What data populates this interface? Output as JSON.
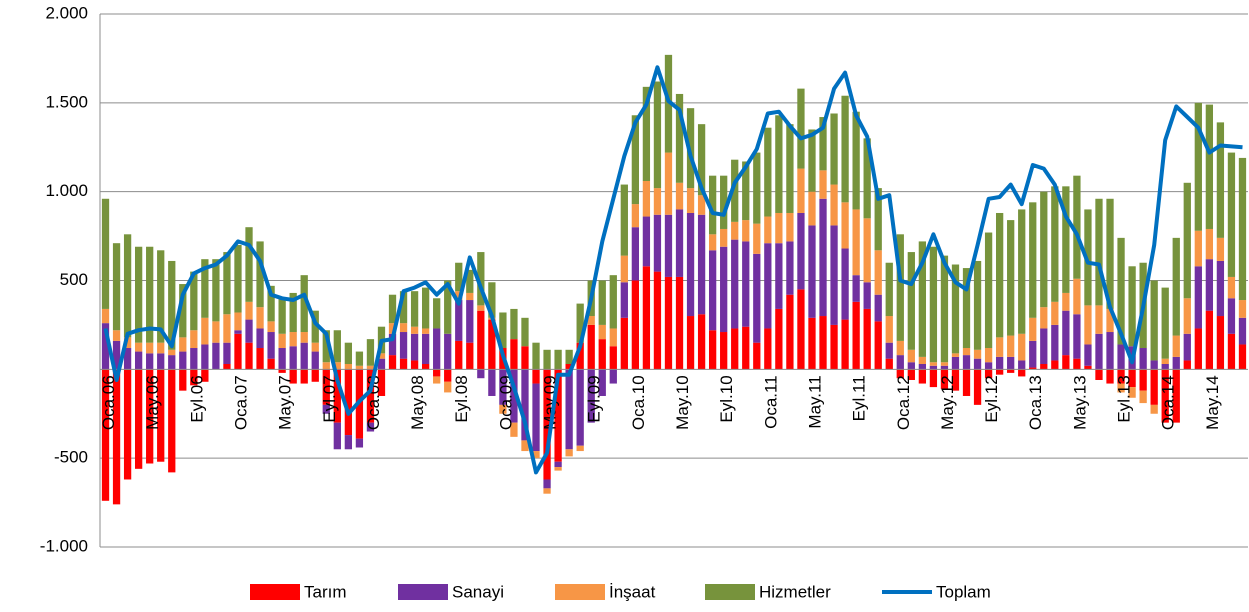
{
  "chart_data": {
    "type": "bar",
    "stacked": true,
    "categories": [
      "Oca.06",
      null,
      null,
      null,
      "May.06",
      null,
      null,
      null,
      "Eyl.06",
      null,
      null,
      null,
      "Oca.07",
      null,
      null,
      null,
      "May.07",
      null,
      null,
      null,
      "Eyl.07",
      null,
      null,
      null,
      "Oca.08",
      null,
      null,
      null,
      "May.08",
      null,
      null,
      null,
      "Eyl.08",
      null,
      null,
      null,
      "Oca.09",
      null,
      null,
      null,
      "May.09",
      null,
      null,
      null,
      "Eyl.09",
      null,
      null,
      null,
      "Oca.10",
      null,
      null,
      null,
      "May.10",
      null,
      null,
      null,
      "Eyl.10",
      null,
      null,
      null,
      "Oca.11",
      null,
      null,
      null,
      "May.11",
      null,
      null,
      null,
      "Eyl.11",
      null,
      null,
      null,
      "Oca.12",
      null,
      null,
      null,
      "May.12",
      null,
      null,
      null,
      "Eyl.12",
      null,
      null,
      null,
      "Oca.13",
      null,
      null,
      null,
      "May.13",
      null,
      null,
      null,
      "Eyl.13",
      null,
      null,
      null,
      "Oca.14",
      null,
      null,
      null,
      "May.14",
      null,
      null,
      null
    ],
    "series": [
      {
        "name": "Tarım",
        "color": "#ff0000",
        "values": [
          -740,
          -760,
          -620,
          -560,
          -530,
          -520,
          -580,
          -120,
          -90,
          -70,
          0,
          30,
          200,
          150,
          120,
          60,
          -20,
          -80,
          -80,
          -70,
          -200,
          -300,
          -370,
          -390,
          -300,
          -150,
          80,
          60,
          50,
          30,
          -40,
          -70,
          160,
          150,
          330,
          280,
          120,
          170,
          130,
          -80,
          -620,
          -520,
          30,
          150,
          250,
          170,
          130,
          290,
          500,
          580,
          550,
          520,
          520,
          300,
          310,
          220,
          210,
          230,
          240,
          150,
          230,
          340,
          420,
          450,
          290,
          300,
          250,
          280,
          380,
          340,
          270,
          60,
          -50,
          -60,
          -80,
          -100,
          -110,
          -120,
          -150,
          -200,
          -50,
          -30,
          -20,
          -40,
          10,
          30,
          50,
          80,
          60,
          20,
          -60,
          -80,
          -80,
          -100,
          -120,
          -200,
          -300,
          -300,
          50,
          230,
          330,
          300,
          200,
          140
        ]
      },
      {
        "name": "Sanayi",
        "color": "#7030a0",
        "values": [
          260,
          160,
          120,
          100,
          90,
          90,
          80,
          100,
          120,
          140,
          150,
          120,
          20,
          130,
          110,
          150,
          120,
          130,
          150,
          100,
          -50,
          -150,
          -80,
          -50,
          -50,
          60,
          120,
          150,
          150,
          170,
          230,
          200,
          230,
          240,
          -50,
          -150,
          -200,
          -300,
          -400,
          -380,
          -50,
          -30,
          -450,
          -430,
          -300,
          -150,
          -80,
          200,
          300,
          280,
          320,
          350,
          380,
          580,
          560,
          450,
          480,
          500,
          480,
          500,
          480,
          370,
          300,
          430,
          520,
          660,
          560,
          400,
          150,
          150,
          150,
          90,
          80,
          40,
          30,
          20,
          20,
          70,
          80,
          60,
          40,
          70,
          70,
          50,
          150,
          200,
          200,
          250,
          250,
          120,
          200,
          210,
          140,
          130,
          120,
          50,
          30,
          70,
          150,
          350,
          290,
          310,
          200,
          150
        ]
      },
      {
        "name": "İnşaat",
        "color": "#f79646",
        "values": [
          80,
          60,
          60,
          50,
          60,
          60,
          30,
          80,
          100,
          150,
          120,
          160,
          100,
          100,
          120,
          60,
          80,
          80,
          60,
          50,
          40,
          40,
          30,
          20,
          20,
          30,
          60,
          50,
          40,
          30,
          -40,
          -60,
          50,
          40,
          30,
          10,
          -50,
          -80,
          -60,
          -40,
          -30,
          -20,
          -40,
          -30,
          50,
          80,
          100,
          150,
          130,
          200,
          150,
          350,
          150,
          140,
          110,
          90,
          100,
          100,
          120,
          170,
          150,
          170,
          160,
          250,
          190,
          160,
          230,
          260,
          370,
          360,
          250,
          150,
          80,
          70,
          40,
          20,
          20,
          20,
          40,
          50,
          80,
          110,
          120,
          150,
          130,
          120,
          130,
          100,
          200,
          220,
          160,
          130,
          -50,
          -60,
          -70,
          -50,
          30,
          120,
          200,
          200,
          170,
          130,
          120,
          100
        ]
      },
      {
        "name": "Hizmetler",
        "color": "#77933c",
        "values": [
          620,
          490,
          580,
          540,
          540,
          520,
          500,
          300,
          330,
          330,
          350,
          350,
          380,
          420,
          370,
          200,
          200,
          220,
          320,
          180,
          180,
          180,
          120,
          80,
          150,
          150,
          160,
          180,
          200,
          230,
          170,
          300,
          160,
          130,
          300,
          200,
          200,
          170,
          160,
          150,
          110,
          110,
          80,
          220,
          200,
          250,
          300,
          400,
          500,
          530,
          600,
          550,
          500,
          450,
          400,
          330,
          300,
          350,
          330,
          400,
          500,
          550,
          500,
          450,
          350,
          300,
          400,
          600,
          550,
          450,
          350,
          300,
          600,
          550,
          650,
          650,
          600,
          500,
          450,
          500,
          650,
          700,
          650,
          700,
          650,
          650,
          650,
          600,
          580,
          540,
          600,
          620,
          600,
          450,
          480,
          450,
          400,
          550,
          650,
          720,
          700,
          650,
          700,
          800
        ]
      },
      {
        "name": "Toplam",
        "color": "#0070c0",
        "type": "line",
        "values": [
          230,
          -60,
          200,
          220,
          230,
          225,
          130,
          420,
          540,
          570,
          590,
          640,
          720,
          700,
          610,
          420,
          400,
          390,
          420,
          260,
          200,
          -60,
          -250,
          -180,
          -120,
          160,
          170,
          440,
          460,
          490,
          420,
          480,
          370,
          630,
          460,
          300,
          80,
          -100,
          -300,
          -580,
          -470,
          -30,
          -30,
          130,
          400,
          720,
          960,
          1200,
          1390,
          1490,
          1700,
          1510,
          1460,
          1200,
          1020,
          880,
          870,
          1050,
          1140,
          1240,
          1440,
          1450,
          1370,
          1300,
          1320,
          1360,
          1580,
          1670,
          1430,
          1310,
          960,
          980,
          500,
          480,
          600,
          760,
          600,
          490,
          450,
          700,
          960,
          970,
          1040,
          930,
          1150,
          1130,
          1040,
          860,
          760,
          600,
          590,
          350,
          200,
          40,
          350,
          700,
          1290,
          1480,
          1420,
          1360,
          1220,
          1260,
          1255,
          1250
        ]
      }
    ],
    "ylim": [
      -1000,
      2000
    ],
    "yticks": [
      {
        "value": -1000,
        "label": "-1.000"
      },
      -500,
      500,
      {
        "value": 1000,
        "label": "1.000"
      },
      {
        "value": 1500,
        "label": "1.500"
      },
      {
        "value": 2000,
        "label": "2.000"
      }
    ],
    "grid": true,
    "legend": "bottom"
  }
}
